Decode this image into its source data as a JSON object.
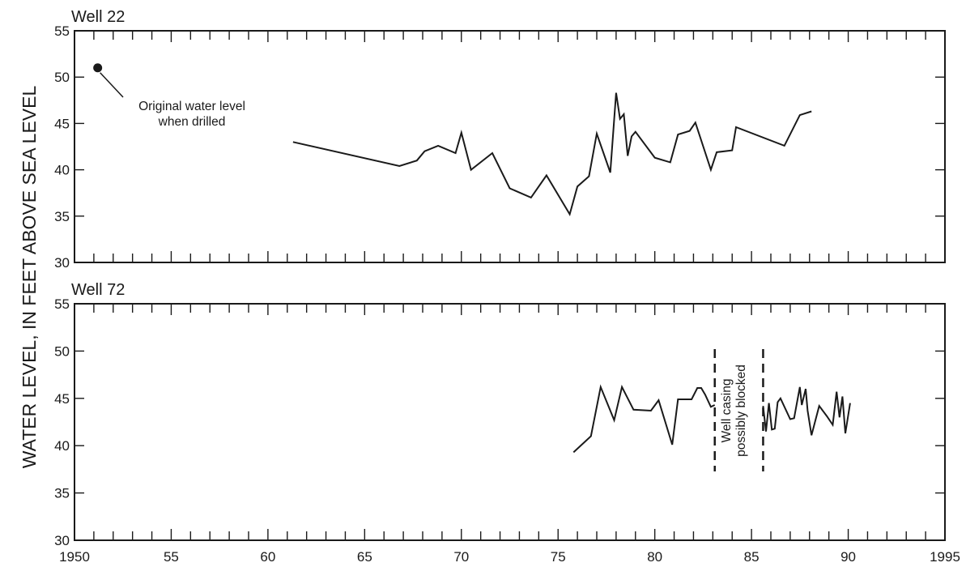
{
  "ylabel": "WATER LEVEL, IN FEET ABOVE SEA LEVEL",
  "x_tick_labels": [
    "1950",
    "55",
    "60",
    "65",
    "70",
    "75",
    "80",
    "85",
    "90",
    "1995"
  ],
  "chart_data": [
    {
      "type": "line",
      "title": "Well 22",
      "ylabel": "WATER LEVEL, IN FEET ABOVE SEA LEVEL",
      "xlim": [
        1950,
        1995
      ],
      "ylim": [
        30,
        55
      ],
      "yticks": [
        30,
        35,
        40,
        45,
        50,
        55
      ],
      "y_tick_labels": [
        "30",
        "35",
        "40",
        "45",
        "50",
        "55"
      ],
      "grid": false,
      "points": [
        {
          "x": 1951.2,
          "y": 51.0
        }
      ],
      "annotations": [
        {
          "text": "Original water level",
          "text2": "when drilled",
          "x": 1951.2,
          "y": 51.0
        }
      ],
      "series": [
        {
          "x": [
            1961.3,
            1966.8,
            1967.7,
            1968.1,
            1968.8,
            1969.7,
            1970.0,
            1970.5,
            1971.6,
            1972.5,
            1973.6,
            1974.4,
            1975.6,
            1976.0,
            1976.6,
            1977.0,
            1977.7,
            1978.0,
            1978.2,
            1978.4,
            1978.6,
            1978.8,
            1979.0,
            1980.0,
            1980.8,
            1981.2,
            1981.8,
            1982.1,
            1982.9,
            1983.2,
            1984.0,
            1984.2,
            1986.7,
            1987.5,
            1988.1
          ],
          "y": [
            43.0,
            40.4,
            41.0,
            42.0,
            42.6,
            41.8,
            44.0,
            40.0,
            41.8,
            38.0,
            37.0,
            39.4,
            35.2,
            38.2,
            39.3,
            43.9,
            39.7,
            48.3,
            45.5,
            46.0,
            41.5,
            43.6,
            44.1,
            41.3,
            40.8,
            43.8,
            44.2,
            45.1,
            40.0,
            41.9,
            42.1,
            44.6,
            42.6,
            45.9,
            46.3
          ]
        }
      ]
    },
    {
      "type": "line",
      "title": "Well 72",
      "ylabel": "WATER LEVEL, IN FEET ABOVE SEA LEVEL",
      "xlim": [
        1950,
        1995
      ],
      "ylim": [
        30,
        55
      ],
      "yticks": [
        30,
        35,
        40,
        45,
        50,
        55
      ],
      "y_tick_labels": [
        "30",
        "35",
        "40",
        "45",
        "50",
        "55"
      ],
      "grid": false,
      "annotations": [
        {
          "text": "Well casing",
          "text2": "possibly blocked",
          "x_from": 1983.1,
          "x_to": 1985.6
        }
      ],
      "series": [
        {
          "x": [
            1975.8,
            1976.7,
            1977.2,
            1977.9,
            1978.3,
            1978.9,
            1979.8,
            1980.2,
            1980.9,
            1981.2,
            1981.9,
            1982.2,
            1982.4,
            1982.6,
            1982.9,
            1983.1
          ],
          "y": [
            39.3,
            41.0,
            46.2,
            42.7,
            46.2,
            43.8,
            43.7,
            44.8,
            40.1,
            44.9,
            44.9,
            46.1,
            46.1,
            45.4,
            44.1,
            44.3
          ]
        },
        {
          "x": [
            1985.6,
            1985.75,
            1985.9,
            1986.05,
            1986.2,
            1986.35,
            1986.5,
            1987.0,
            1987.2,
            1987.5,
            1987.6,
            1987.8,
            1987.9,
            1988.1,
            1988.5,
            1988.9,
            1989.2,
            1989.4,
            1989.55,
            1989.7,
            1989.85,
            1990.1
          ],
          "y": [
            44.2,
            41.5,
            44.5,
            41.7,
            41.8,
            44.6,
            45.0,
            42.8,
            42.9,
            46.2,
            44.3,
            46.0,
            43.7,
            41.1,
            44.2,
            43.1,
            42.2,
            45.7,
            43.0,
            45.2,
            41.3,
            44.5
          ]
        }
      ]
    }
  ]
}
